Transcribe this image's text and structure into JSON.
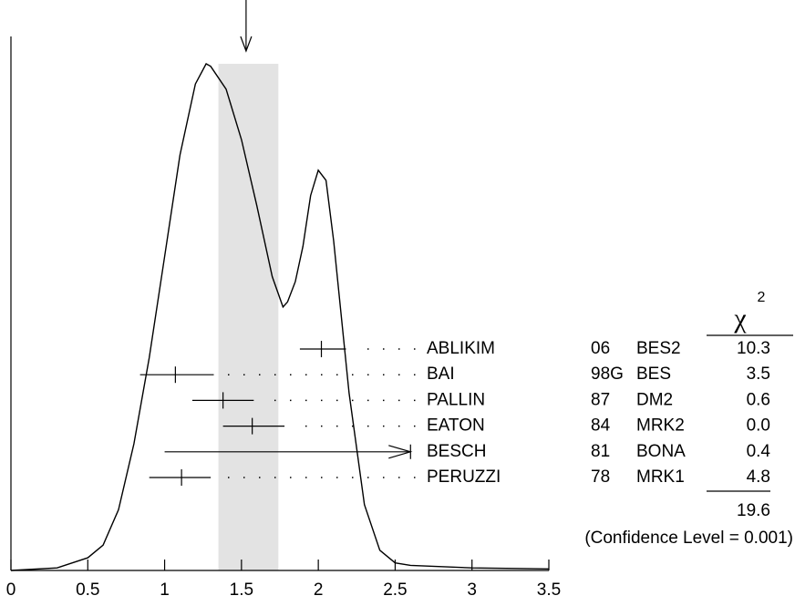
{
  "chart_data": {
    "type": "ideogram",
    "xlim": [
      0,
      3.5
    ],
    "xticks": [
      0,
      0.5,
      1,
      1.5,
      2,
      2.5,
      3,
      3.5
    ],
    "ylim": [
      0,
      1
    ],
    "curve": {
      "x": [
        0,
        0.3,
        0.5,
        0.6,
        0.7,
        0.8,
        0.9,
        1.0,
        1.1,
        1.2,
        1.27,
        1.3,
        1.4,
        1.5,
        1.6,
        1.7,
        1.77,
        1.8,
        1.85,
        1.9,
        1.95,
        2.0,
        2.05,
        2.1,
        2.2,
        2.3,
        2.4,
        2.5,
        2.6,
        3.0,
        3.5
      ],
      "y": [
        0,
        0.005,
        0.025,
        0.05,
        0.12,
        0.25,
        0.42,
        0.62,
        0.82,
        0.96,
        1.0,
        0.995,
        0.95,
        0.85,
        0.72,
        0.58,
        0.52,
        0.53,
        0.57,
        0.64,
        0.74,
        0.79,
        0.77,
        0.65,
        0.35,
        0.13,
        0.04,
        0.015,
        0.01,
        0.005,
        0.003
      ]
    },
    "band": [
      1.35,
      1.74
    ],
    "average": 1.53,
    "measurements": {
      "names": [
        "ABLIKIM",
        "BAI",
        "PALLIN",
        "EATON",
        "BESCH",
        "PERUZZI"
      ],
      "years": [
        "06",
        "98G",
        "87",
        "84",
        "81",
        "78"
      ],
      "experiments": [
        "BES2",
        "BES",
        "DM2",
        "MRK2",
        "BONA",
        "MRK1"
      ],
      "values": [
        2.02,
        1.07,
        1.38,
        1.57,
        null,
        1.11
      ],
      "lows": [
        1.88,
        0.84,
        1.18,
        1.38,
        1.0,
        0.9
      ],
      "highs": [
        2.18,
        1.32,
        1.58,
        1.78,
        2.6,
        1.3
      ],
      "chi2": [
        10.3,
        3.5,
        0.6,
        0,
        0.4,
        4.8
      ],
      "chi2_labels": [
        "10.3",
        "3.5",
        "0.6",
        "0.0",
        "0.4",
        "4.8"
      ]
    },
    "chi2_symbol": "χ",
    "chi2_power": "2",
    "chi2_total": 19.6,
    "confidence": "(Confidence Level = 0.001)"
  }
}
